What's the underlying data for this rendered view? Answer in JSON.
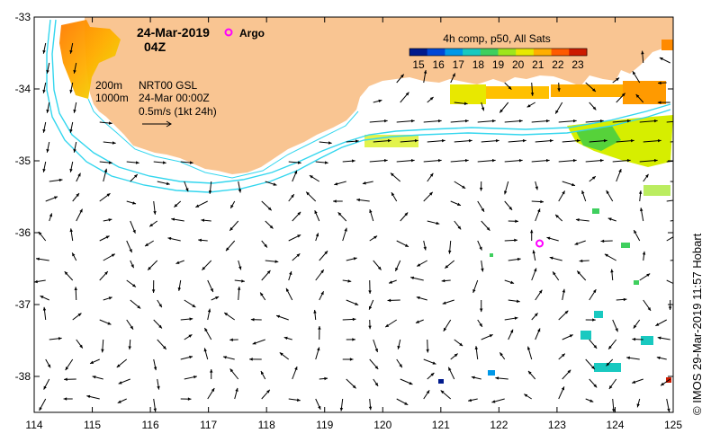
{
  "header": {
    "date": "24-Mar-2019",
    "time": "04Z",
    "argo_label": "Argo"
  },
  "colorbar": {
    "title": "4h comp, p50, All Sats",
    "ticks": [
      "15",
      "16",
      "17",
      "18",
      "19",
      "20",
      "21",
      "22",
      "23"
    ],
    "colors": [
      "#001a8c",
      "#0047d6",
      "#0098e8",
      "#19c9c0",
      "#3fcf5e",
      "#9ee51c",
      "#e8e800",
      "#ffae00",
      "#ff5a00",
      "#cc1a00"
    ]
  },
  "legend": {
    "depth_200": "200m",
    "depth_1000": "1000m",
    "source": "NRT00 GSL",
    "source_time": "24-Mar 00:00Z",
    "scale": "0.5m/s (1kt 24h)"
  },
  "credit": "© IMOS 29-Mar-2019 11:57 Hobart",
  "axes": {
    "x_ticks": [
      "114",
      "115",
      "116",
      "117",
      "118",
      "119",
      "120",
      "121",
      "122",
      "123",
      "124",
      "125"
    ],
    "y_ticks": [
      "-33",
      "-34",
      "-35",
      "-36",
      "-37",
      "-38"
    ],
    "lon_range": [
      114,
      125
    ],
    "lat_range": [
      -38.5,
      -33
    ]
  },
  "argo_float": {
    "lon": 122.7,
    "lat": -36.15
  },
  "colors": {
    "land": "#f9c592",
    "isobath": "#33d6ee",
    "argo": "#ff00ff",
    "arrow": "#000000"
  }
}
